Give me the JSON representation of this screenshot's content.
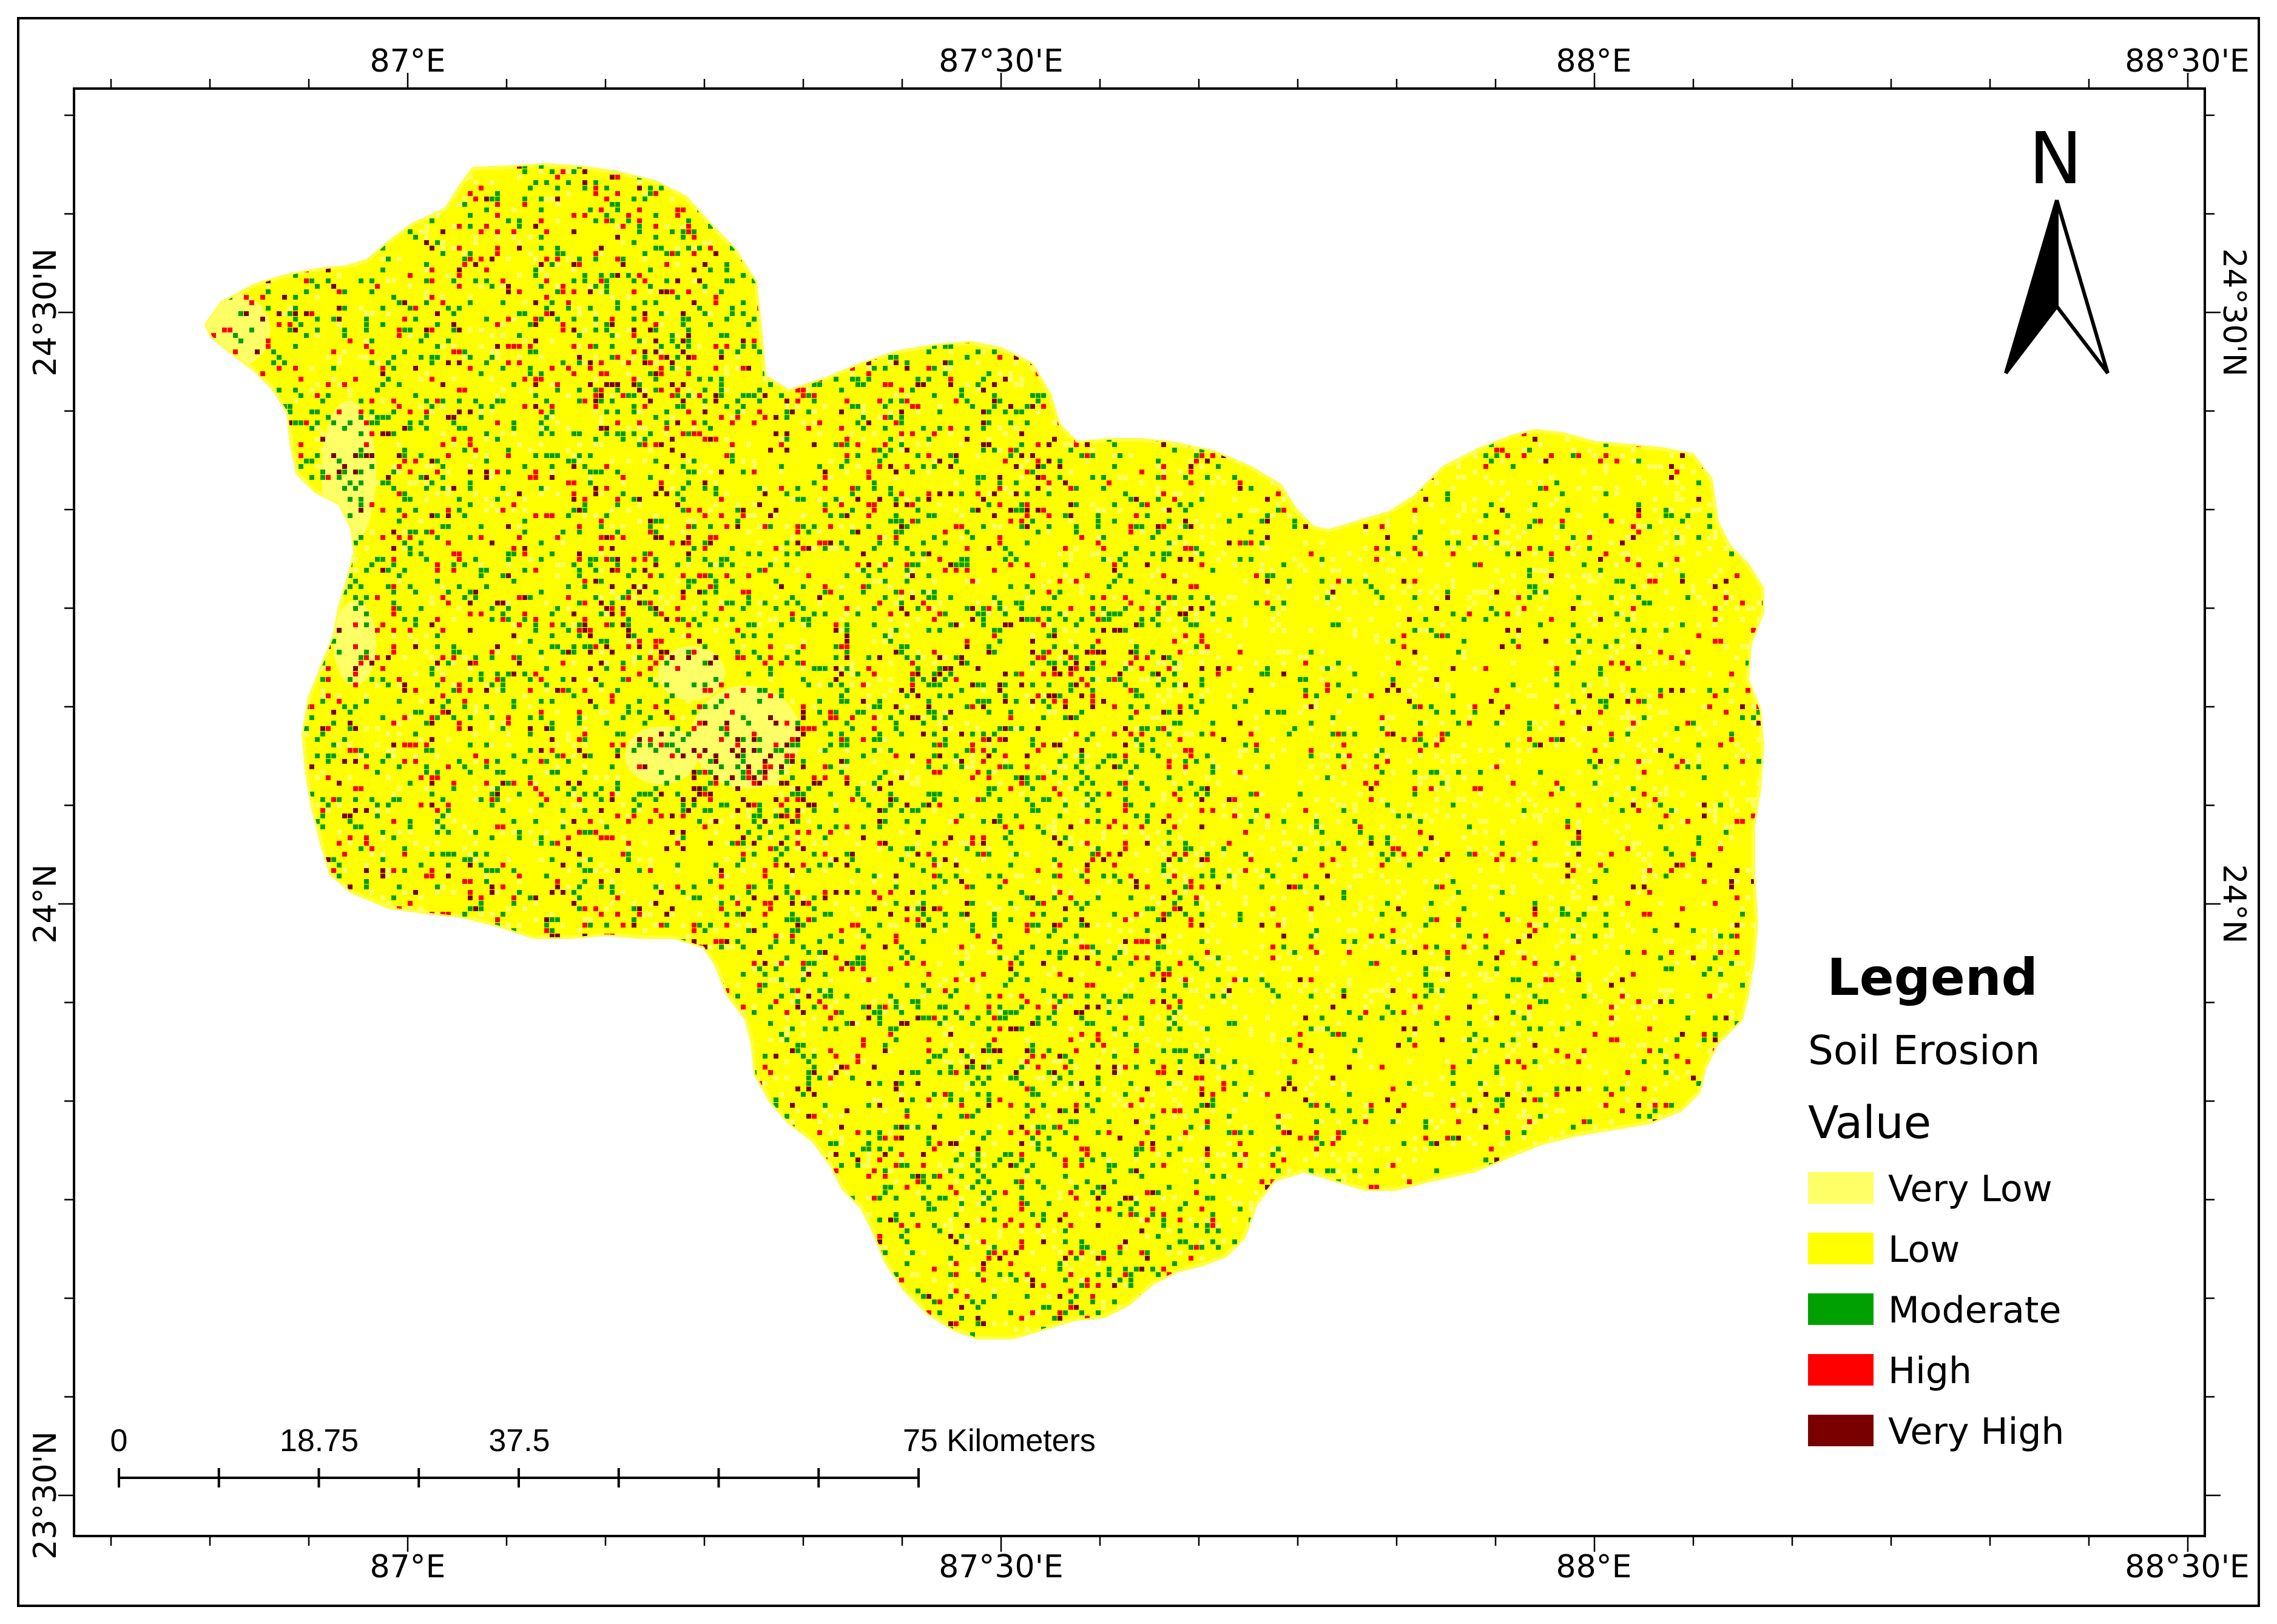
{
  "map": {
    "lon_labels": [
      "87°E",
      "87°30'E",
      "88°E",
      "88°30'E"
    ],
    "lat_labels": [
      "24°30'N",
      "24°N",
      "23°30'N"
    ]
  },
  "north_arrow": {
    "letter": "N",
    "icon": "north-arrow-icon"
  },
  "legend": {
    "title": "Legend",
    "layer": "Soil Erosion",
    "field": "Value",
    "classes": [
      {
        "label": "Very Low",
        "color": "#ffff66"
      },
      {
        "label": "Low",
        "color": "#ffff00"
      },
      {
        "label": "Moderate",
        "color": "#00a000"
      },
      {
        "label": "High",
        "color": "#ff0000"
      },
      {
        "label": "Very High",
        "color": "#7a0000"
      }
    ]
  },
  "scale_bar": {
    "labels": [
      "0",
      "18.75",
      "37.5",
      "75 Kilometers"
    ]
  }
}
